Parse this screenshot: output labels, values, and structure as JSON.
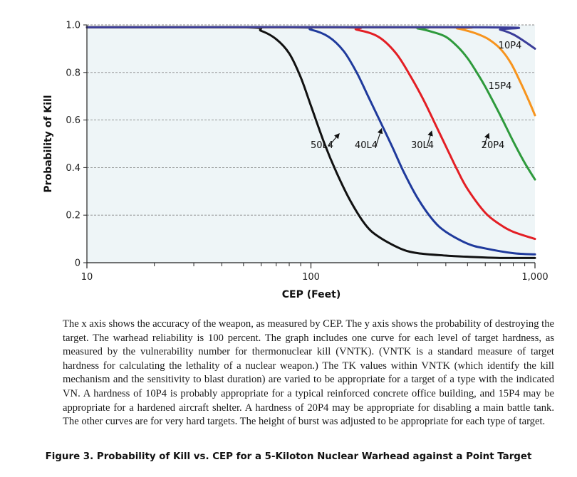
{
  "chart_data": {
    "type": "line",
    "xscale": "log",
    "xlabel": "CEP (Feet)",
    "ylabel": "Probability of Kill",
    "xlim": [
      10,
      1000
    ],
    "ylim": [
      0,
      1.0
    ],
    "x_ticks": [
      {
        "value": 10,
        "label": "10"
      },
      {
        "value": 100,
        "label": "100"
      },
      {
        "value": 1000,
        "label": "1,000"
      }
    ],
    "y_ticks": [
      {
        "value": 0,
        "label": "0"
      },
      {
        "value": 0.2,
        "label": "0.2"
      },
      {
        "value": 0.4,
        "label": "0.4"
      },
      {
        "value": 0.6,
        "label": "0.6"
      },
      {
        "value": 0.8,
        "label": "0.8"
      },
      {
        "value": 1.0,
        "label": "1.0"
      }
    ],
    "grid": {
      "horizontal": true,
      "style": "dashed"
    },
    "series": [
      {
        "name": "50L4",
        "color": "#111111",
        "x": [
          10,
          50,
          60,
          70,
          80,
          90,
          100,
          115,
          130,
          150,
          175,
          200,
          250,
          300,
          400,
          500,
          700,
          1000
        ],
        "y": [
          0.99,
          0.99,
          0.975,
          0.94,
          0.88,
          0.78,
          0.66,
          0.5,
          0.38,
          0.26,
          0.16,
          0.11,
          0.06,
          0.04,
          0.03,
          0.025,
          0.02,
          0.02
        ]
      },
      {
        "name": "40L4",
        "color": "#1f3a9c",
        "x": [
          10,
          80,
          100,
          120,
          140,
          160,
          180,
          200,
          230,
          260,
          300,
          350,
          400,
          500,
          600,
          800,
          1000
        ],
        "y": [
          0.99,
          0.99,
          0.98,
          0.95,
          0.89,
          0.8,
          0.7,
          0.61,
          0.49,
          0.38,
          0.27,
          0.18,
          0.13,
          0.08,
          0.06,
          0.04,
          0.035
        ]
      },
      {
        "name": "30L4",
        "color": "#e31e24",
        "x": [
          10,
          130,
          160,
          200,
          240,
          280,
          320,
          360,
          400,
          450,
          500,
          600,
          700,
          800,
          1000
        ],
        "y": [
          0.99,
          0.99,
          0.98,
          0.95,
          0.88,
          0.78,
          0.68,
          0.58,
          0.49,
          0.39,
          0.31,
          0.21,
          0.16,
          0.13,
          0.1
        ]
      },
      {
        "name": "20P4",
        "color": "#2e9a3c",
        "x": [
          10,
          250,
          300,
          350,
          400,
          450,
          500,
          550,
          600,
          700,
          800,
          900,
          1000
        ],
        "y": [
          0.99,
          0.99,
          0.985,
          0.97,
          0.95,
          0.91,
          0.86,
          0.8,
          0.74,
          0.62,
          0.51,
          0.42,
          0.35
        ]
      },
      {
        "name": "15P4",
        "color": "#f7941d",
        "x": [
          10,
          380,
          450,
          500,
          560,
          620,
          700,
          780,
          860,
          940,
          1000
        ],
        "y": [
          0.99,
          0.99,
          0.985,
          0.975,
          0.96,
          0.94,
          0.9,
          0.84,
          0.76,
          0.68,
          0.62
        ]
      },
      {
        "name": "10P4",
        "color": "#3a3d99",
        "x": [
          10,
          600,
          700,
          800,
          900,
          1000
        ],
        "y": [
          0.99,
          0.99,
          0.98,
          0.96,
          0.93,
          0.9
        ]
      }
    ],
    "annotations": [
      {
        "text": "50L4",
        "series": "50L4",
        "arrow_from": [
          120,
          0.49
        ],
        "arrow_to": [
          133,
          0.54
        ]
      },
      {
        "text": "40L4",
        "series": "40L4",
        "arrow_from": [
          195,
          0.49
        ],
        "arrow_to": [
          206,
          0.56
        ]
      },
      {
        "text": "30L4",
        "series": "30L4",
        "arrow_from": [
          330,
          0.49
        ],
        "arrow_to": [
          345,
          0.55
        ]
      },
      {
        "text": "20P4",
        "series": "20P4",
        "arrow_from": [
          590,
          0.49
        ],
        "arrow_to": [
          620,
          0.54
        ]
      },
      {
        "text": "15P4",
        "series": "15P4"
      },
      {
        "text": "10P4",
        "series": "10P4"
      }
    ]
  },
  "caption": {
    "paragraph": "The x axis shows the accuracy of the weapon, as measured by CEP. The y axis shows the probability of destroying the target. The warhead reliability is 100 percent. The graph includes one curve for each level of target hardness, as measured by the vulnerability number for thermonuclear kill (VNTK). (VNTK is a standard measure of target hardness for calculating the lethality of a nuclear weapon.) The TK values within VNTK (which identify the kill mechanism and the sensitivity to blast duration) are varied to be appropriate for a target of a type with the indicated VN. A hardness of 10P4 is probably appropriate for a typical reinforced concrete office building, and 15P4 may be appropriate for a hardened aircraft shelter. A hardness of 20P4 may be appropriate for disabling a main battle tank. The other curves are for very hard targets. The height of burst was adjusted to be appropriate for each type of target.",
    "figure_title": "Figure 3.  Probability of Kill vs. CEP for a 5-Kiloton Nuclear Warhead against a Point Target"
  }
}
